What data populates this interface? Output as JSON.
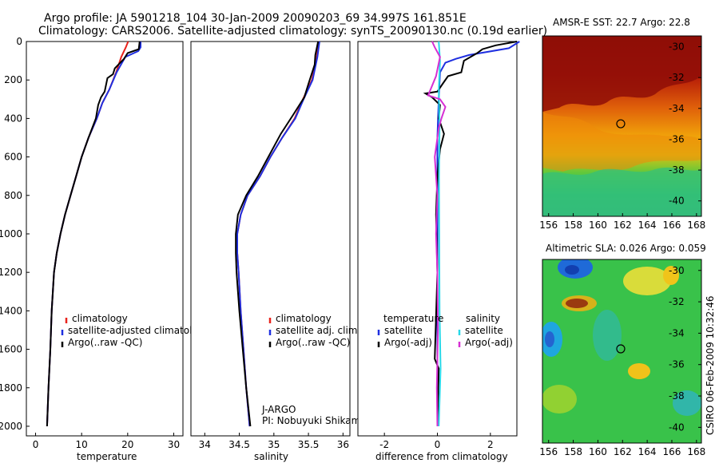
{
  "header": {
    "line1": "Argo profile: JA 5901218_104 30-Jan-2009 20090203_69 34.997S 161.851E",
    "line2": "Climatology: CARS2006. Satellite-adjusted climatology: synTS_20090130.nc (0.19d earlier)"
  },
  "side_label": "CSIRO 06-Feb-2009 10:32:46",
  "colors": {
    "climatology": "#e8231c",
    "satellite": "#1f2fe0",
    "argo": "#000000",
    "sat_salinity": "#27d8e8",
    "argo_salinity": "#d62fd3"
  },
  "chart_data": [
    {
      "type": "line",
      "name": "temperature-profile",
      "xlabel": "temperature",
      "ylabel": "",
      "xlim": [
        -2,
        32
      ],
      "ylim": [
        2050,
        0
      ],
      "xticks": [
        0,
        10,
        20,
        30
      ],
      "yticks": [
        0,
        200,
        400,
        600,
        800,
        1000,
        1200,
        1400,
        1600,
        1800,
        2000
      ],
      "legend": [
        "climatology",
        "satellite-adjusted climatology",
        "Argo(..raw -QC)"
      ],
      "series": [
        {
          "name": "climatology",
          "color": "#e8231c",
          "points": [
            [
              20.1,
              0
            ],
            [
              19.6,
              30
            ],
            [
              18.6,
              80
            ],
            [
              17.5,
              160
            ],
            [
              16.0,
              250
            ],
            [
              14.5,
              320
            ],
            [
              13.3,
              400
            ],
            [
              11.5,
              500
            ],
            [
              10.0,
              600
            ],
            [
              8.8,
              700
            ],
            [
              7.6,
              800
            ],
            [
              6.4,
              900
            ],
            [
              5.4,
              1000
            ],
            [
              4.6,
              1100
            ],
            [
              4.0,
              1200
            ],
            [
              3.5,
              1400
            ],
            [
              3.2,
              1600
            ],
            [
              2.8,
              1800
            ],
            [
              2.5,
              2000
            ]
          ]
        },
        {
          "name": "satellite-adjusted climatology",
          "color": "#1f2fe0",
          "points": [
            [
              22.8,
              0
            ],
            [
              22.8,
              30
            ],
            [
              22.3,
              50
            ],
            [
              19.5,
              80
            ],
            [
              17.6,
              160
            ],
            [
              16.0,
              250
            ],
            [
              14.5,
              320
            ],
            [
              13.3,
              400
            ],
            [
              11.5,
              500
            ],
            [
              10.0,
              600
            ],
            [
              8.8,
              700
            ],
            [
              7.6,
              800
            ],
            [
              6.4,
              900
            ],
            [
              5.4,
              1000
            ],
            [
              4.6,
              1100
            ],
            [
              4.0,
              1200
            ],
            [
              3.5,
              1400
            ],
            [
              3.2,
              1600
            ],
            [
              2.8,
              1800
            ],
            [
              2.5,
              2000
            ]
          ]
        },
        {
          "name": "Argo(..raw -QC)",
          "color": "#000000",
          "points": [
            [
              22.6,
              0
            ],
            [
              22.4,
              40
            ],
            [
              20.0,
              60
            ],
            [
              19.2,
              90
            ],
            [
              17.2,
              140
            ],
            [
              16.8,
              170
            ],
            [
              15.6,
              190
            ],
            [
              15.0,
              260
            ],
            [
              14.2,
              290
            ],
            [
              13.6,
              330
            ],
            [
              13.1,
              400
            ],
            [
              11.5,
              500
            ],
            [
              10.0,
              600
            ],
            [
              8.8,
              700
            ],
            [
              7.6,
              800
            ],
            [
              6.4,
              900
            ],
            [
              5.4,
              1000
            ],
            [
              4.6,
              1100
            ],
            [
              4.0,
              1200
            ],
            [
              3.5,
              1400
            ],
            [
              3.2,
              1600
            ],
            [
              2.8,
              1800
            ],
            [
              2.5,
              2000
            ]
          ]
        }
      ]
    },
    {
      "type": "line",
      "name": "salinity-profile",
      "xlabel": "salinity",
      "ylabel": "",
      "xlim": [
        33.8,
        36.1
      ],
      "ylim": [
        2050,
        0
      ],
      "xticks": [
        34,
        34.5,
        35,
        35.5,
        36
      ],
      "legend": [
        "climatology",
        "satellite adj. clim.",
        "Argo(..raw -QC)"
      ],
      "annotation": [
        "J-ARGO",
        "PI: Nobuyuki Shikama"
      ],
      "series": [
        {
          "name": "climatology",
          "color": "#e8231c",
          "points": [
            [
              35.65,
              0
            ],
            [
              35.62,
              80
            ],
            [
              35.55,
              200
            ],
            [
              35.42,
              300
            ],
            [
              35.3,
              400
            ],
            [
              35.12,
              500
            ],
            [
              34.95,
              600
            ],
            [
              34.8,
              700
            ],
            [
              34.62,
              800
            ],
            [
              34.52,
              900
            ],
            [
              34.47,
              1000
            ],
            [
              34.47,
              1100
            ],
            [
              34.49,
              1200
            ],
            [
              34.52,
              1400
            ],
            [
              34.56,
              1600
            ],
            [
              34.6,
              1800
            ],
            [
              34.65,
              2000
            ]
          ]
        },
        {
          "name": "satellite adj. clim.",
          "color": "#1f2fe0",
          "points": [
            [
              35.66,
              0
            ],
            [
              35.63,
              80
            ],
            [
              35.56,
              200
            ],
            [
              35.43,
              300
            ],
            [
              35.31,
              400
            ],
            [
              35.12,
              500
            ],
            [
              34.95,
              600
            ],
            [
              34.8,
              700
            ],
            [
              34.62,
              800
            ],
            [
              34.52,
              900
            ],
            [
              34.47,
              1000
            ],
            [
              34.47,
              1100
            ],
            [
              34.49,
              1200
            ],
            [
              34.52,
              1400
            ],
            [
              34.56,
              1600
            ],
            [
              34.6,
              1800
            ],
            [
              34.65,
              2000
            ]
          ]
        },
        {
          "name": "Argo(..raw -QC)",
          "color": "#000000",
          "points": [
            [
              35.64,
              0
            ],
            [
              35.6,
              70
            ],
            [
              35.59,
              120
            ],
            [
              35.5,
              220
            ],
            [
              35.44,
              290
            ],
            [
              35.28,
              380
            ],
            [
              35.1,
              480
            ],
            [
              34.92,
              600
            ],
            [
              34.77,
              700
            ],
            [
              34.6,
              800
            ],
            [
              34.48,
              900
            ],
            [
              34.45,
              1000
            ],
            [
              34.45,
              1100
            ],
            [
              34.46,
              1200
            ],
            [
              34.5,
              1400
            ],
            [
              34.55,
              1600
            ],
            [
              34.6,
              1800
            ],
            [
              34.66,
              2000
            ]
          ]
        }
      ]
    },
    {
      "type": "line",
      "name": "difference-profile",
      "xlabel": "difference from climatology",
      "ylabel": "",
      "xlim": [
        -3,
        3
      ],
      "ylim": [
        2050,
        0
      ],
      "xticks": [
        -2,
        0,
        2
      ],
      "legend_left_title": "temperature",
      "legend_right_title": "salinity",
      "legend": [
        "satellite",
        "Argo(-adj)",
        "satellite",
        "Argo(-adj)"
      ],
      "series": [
        {
          "name": "temperature satellite",
          "color": "#1f2fe0",
          "points": [
            [
              3.1,
              0
            ],
            [
              2.7,
              35
            ],
            [
              1.2,
              70
            ],
            [
              0.7,
              90
            ],
            [
              0.3,
              110
            ],
            [
              0.1,
              160
            ],
            [
              0.05,
              300
            ],
            [
              0,
              500
            ],
            [
              0,
              2000
            ]
          ]
        },
        {
          "name": "temperature Argo(-adj)",
          "color": "#000000",
          "points": [
            [
              3.0,
              0
            ],
            [
              2.2,
              20
            ],
            [
              1.7,
              40
            ],
            [
              1.5,
              60
            ],
            [
              1.0,
              100
            ],
            [
              0.9,
              160
            ],
            [
              0.4,
              180
            ],
            [
              0.2,
              220
            ],
            [
              0.0,
              260
            ],
            [
              -0.45,
              270
            ],
            [
              -0.2,
              290
            ],
            [
              0.1,
              330
            ],
            [
              0.05,
              400
            ],
            [
              0.25,
              480
            ],
            [
              0.1,
              560
            ],
            [
              0.0,
              700
            ],
            [
              -0.05,
              900
            ],
            [
              0.0,
              1200
            ],
            [
              -0.1,
              1650
            ],
            [
              0.05,
              1700
            ],
            [
              0.0,
              2000
            ]
          ]
        },
        {
          "name": "salinity satellite",
          "color": "#27d8e8",
          "points": [
            [
              0.05,
              0
            ],
            [
              0.1,
              100
            ],
            [
              0.05,
              250
            ],
            [
              0.08,
              450
            ],
            [
              0.06,
              700
            ],
            [
              0.07,
              1000
            ],
            [
              0.08,
              1400
            ],
            [
              0.12,
              1700
            ],
            [
              0.05,
              2000
            ]
          ]
        },
        {
          "name": "salinity Argo(-adj)",
          "color": "#d62fd3",
          "points": [
            [
              -0.2,
              0
            ],
            [
              -0.1,
              30
            ],
            [
              0.1,
              80
            ],
            [
              -0.05,
              180
            ],
            [
              -0.35,
              280
            ],
            [
              0.1,
              300
            ],
            [
              0.3,
              340
            ],
            [
              0.15,
              400
            ],
            [
              0.05,
              450
            ],
            [
              -0.1,
              600
            ],
            [
              0.0,
              800
            ],
            [
              -0.05,
              1000
            ],
            [
              0.0,
              1200
            ],
            [
              0.02,
              1500
            ],
            [
              -0.02,
              1800
            ],
            [
              0.0,
              2000
            ]
          ]
        }
      ]
    },
    {
      "type": "heatmap",
      "name": "amsr-sst-map",
      "title": "AMSR-E SST: 22.7 Argo: 22.8",
      "xlim": [
        155.5,
        168.4
      ],
      "ylim": [
        -41,
        -29.3
      ],
      "xticks": [
        156,
        158,
        160,
        162,
        164,
        166,
        168
      ],
      "yticks": [
        -30,
        -32,
        -34,
        -36,
        -38,
        -40
      ],
      "marker": {
        "lon": 161.851,
        "lat": -34.997
      }
    },
    {
      "type": "heatmap",
      "name": "altimetric-sla-map",
      "title": "Altimetric SLA: 0.026 Argo: 0.059",
      "xlim": [
        155.5,
        168.4
      ],
      "ylim": [
        -41,
        -29.3
      ],
      "xticks": [
        156,
        158,
        160,
        162,
        164,
        166,
        168
      ],
      "yticks": [
        -30,
        -32,
        -34,
        -36,
        -38,
        -40
      ],
      "marker": {
        "lon": 161.851,
        "lat": -34.997
      }
    }
  ]
}
